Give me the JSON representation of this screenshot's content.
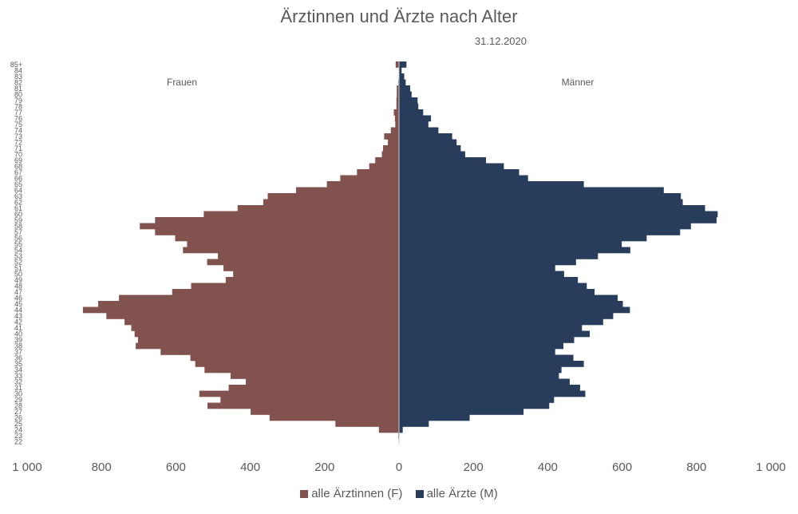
{
  "chart_data": {
    "type": "bar",
    "orientation": "horizontal-population-pyramid",
    "title": "Ärztinnen und Ärzte nach Alter",
    "subtitle": "31.12.2020",
    "side_labels": {
      "left": "Frauen",
      "right": "Männer"
    },
    "categories": [
      "85+",
      "84",
      "83",
      "82",
      "81",
      "80",
      "79",
      "78",
      "77",
      "76",
      "75",
      "74",
      "73",
      "72",
      "71",
      "70",
      "69",
      "68",
      "67",
      "66",
      "65",
      "64",
      "63",
      "62",
      "61",
      "60",
      "59",
      "58",
      "57",
      "56",
      "55",
      "54",
      "53",
      "52",
      "51",
      "50",
      "49",
      "48",
      "47",
      "46",
      "45",
      "44",
      "43",
      "42",
      "41",
      "40",
      "39",
      "38",
      "37",
      "36",
      "35",
      "34",
      "33",
      "32",
      "31",
      "30",
      "29",
      "28",
      "27",
      "26",
      "25",
      "24",
      "23",
      "22"
    ],
    "series": [
      {
        "name": "alle Ärztinnen (F)",
        "color": "#82534E",
        "side": "left",
        "values": [
          9,
          0,
          1,
          2,
          6,
          6,
          7,
          7,
          14,
          11,
          10,
          22,
          40,
          30,
          43,
          46,
          64,
          80,
          113,
          158,
          194,
          277,
          353,
          365,
          434,
          525,
          656,
          697,
          656,
          602,
          570,
          581,
          487,
          516,
          472,
          446,
          466,
          559,
          610,
          753,
          809,
          850,
          787,
          738,
          720,
          711,
          702,
          708,
          641,
          561,
          548,
          523,
          453,
          412,
          458,
          537,
          480,
          515,
          399,
          348,
          171,
          54,
          2,
          0
        ]
      },
      {
        "name": "alle Ärzte (M)",
        "color": "#283C5C",
        "side": "right",
        "values": [
          20,
          7,
          14,
          18,
          30,
          34,
          50,
          52,
          65,
          86,
          79,
          106,
          143,
          155,
          166,
          178,
          234,
          282,
          323,
          347,
          497,
          712,
          758,
          763,
          823,
          857,
          854,
          785,
          756,
          666,
          599,
          622,
          535,
          476,
          420,
          444,
          481,
          505,
          526,
          588,
          602,
          621,
          576,
          549,
          492,
          513,
          471,
          442,
          420,
          469,
          497,
          437,
          430,
          459,
          487,
          501,
          417,
          404,
          335,
          190,
          80,
          10,
          1,
          0
        ]
      }
    ],
    "x_ticks": [
      "1 000",
      "800",
      "600",
      "400",
      "200",
      "0",
      "200",
      "400",
      "600",
      "800",
      "1 000"
    ],
    "xlim": [
      -1000,
      1000
    ],
    "grid": false,
    "legend": "bottom"
  }
}
